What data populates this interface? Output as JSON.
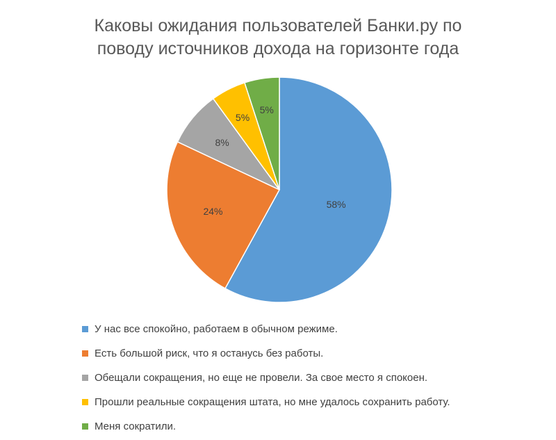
{
  "chart_data": {
    "type": "pie",
    "title": "Каковы ожидания пользователей Банки.ру по поводу источников дохода на горизонте года",
    "title_lines": [
      "Каковы ожидания пользователей Банки.ру по",
      "поводу источников дохода на горизонте года"
    ],
    "categories": [
      "У нас все спокойно, работаем в обычном режиме.",
      "Есть большой риск, что я останусь без работы.",
      "Обещали сокращения, но еще не провели. За свое место я спокоен.",
      "Прошли реальные сокращения штата, но мне удалось сохранить работу.",
      "Меня сократили."
    ],
    "values": [
      58,
      24,
      8,
      5,
      5
    ],
    "data_labels": [
      "58%",
      "24%",
      "8%",
      "5%",
      "5%"
    ],
    "colors": [
      "#5B9BD5",
      "#ED7D31",
      "#A5A5A5",
      "#FFC000",
      "#70AD47"
    ],
    "legend_position": "bottom"
  }
}
